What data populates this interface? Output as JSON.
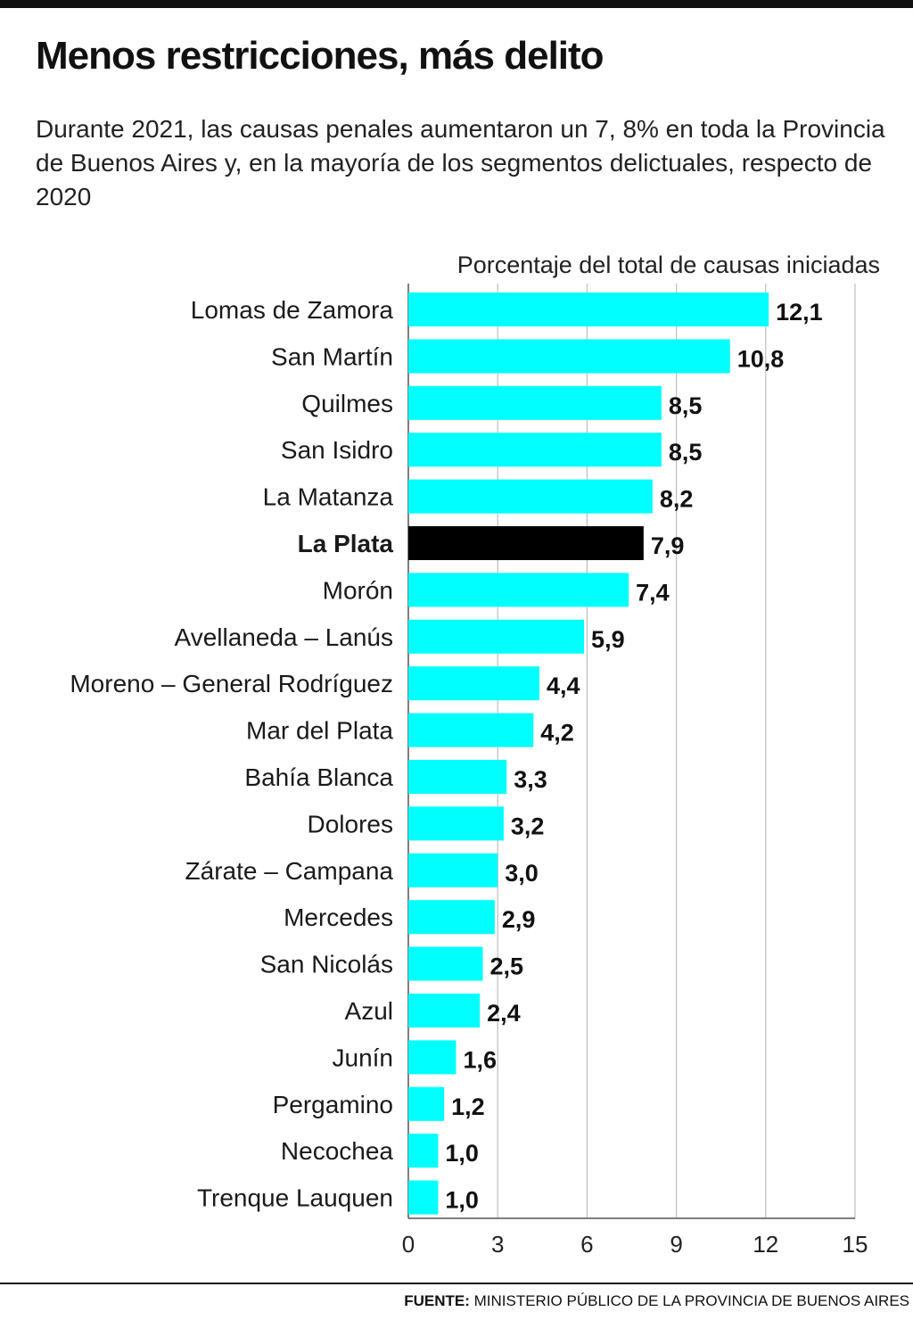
{
  "header": {
    "title": "Menos restricciones, más delito",
    "subtitle": "Durante 2021, las causas penales aumentaron un 7, 8% en toda la Provincia de Buenos Aires y, en la mayoría de los segmentos delictuales, respecto de 2020"
  },
  "footer": {
    "source_label": "FUENTE:",
    "source_text": " MINISTERIO PÚBLICO DE LA PROVINCIA DE BUENOS AIRES"
  },
  "colors": {
    "bar": "#00ffff",
    "highlight": "#000000",
    "grid": "#bdbdbd",
    "axis": "#555555"
  },
  "chart_data": {
    "type": "bar",
    "orientation": "horizontal",
    "xlabel": "Porcentaje del total de causas iniciadas",
    "xlim": [
      0,
      15
    ],
    "xticks": [
      0,
      3,
      6,
      9,
      12,
      15
    ],
    "grid": true,
    "categories": [
      "Lomas de Zamora",
      "San Martín",
      "Quilmes",
      "San Isidro",
      "La Matanza",
      "La Plata",
      "Morón",
      "Avellaneda – Lanús",
      "Moreno – General Rodríguez",
      "Mar del Plata",
      "Bahía Blanca",
      "Dolores",
      "Zárate – Campana",
      "Mercedes",
      "San Nicolás",
      "Azul",
      "Junín",
      "Pergamino",
      "Necochea",
      "Trenque Lauquen"
    ],
    "values": [
      12.1,
      10.8,
      8.5,
      8.5,
      8.2,
      7.9,
      7.4,
      5.9,
      4.4,
      4.2,
      3.3,
      3.2,
      3.0,
      2.9,
      2.5,
      2.4,
      1.6,
      1.2,
      1.0,
      1.0
    ],
    "value_labels": [
      "12,1",
      "10,8",
      "8,5",
      "8,5",
      "8,2",
      "7,9",
      "7,4",
      "5,9",
      "4,4",
      "4,2",
      "3,3",
      "3,2",
      "3,0",
      "2,9",
      "2,5",
      "2,4",
      "1,6",
      "1,2",
      "1,0",
      "1,0"
    ],
    "highlight": "La Plata"
  }
}
